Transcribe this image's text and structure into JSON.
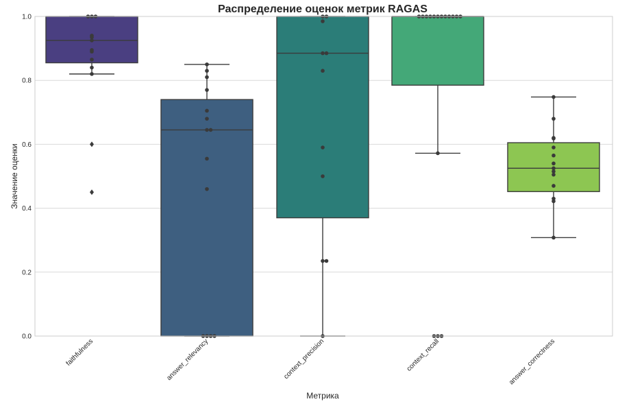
{
  "chart_data": {
    "type": "boxplot",
    "title": "Распределение оценок метрик RAGAS",
    "xlabel": "Метрика",
    "ylabel": "Значение оценки",
    "ylim": [
      0.0,
      1.0
    ],
    "yticks": [
      "0.0",
      "0.2",
      "0.4",
      "0.6",
      "0.8",
      "1.0"
    ],
    "grid": true,
    "categories": [
      "faithfulness",
      "answer_relevancy",
      "context_precision",
      "context_recall",
      "answer_correctness"
    ],
    "series": [
      {
        "name": "faithfulness",
        "color": "#4a3f81",
        "q1": 0.855,
        "median": 0.925,
        "q3": 1.0,
        "whisker_low": 0.82,
        "whisker_high": 1.0,
        "outliers": [
          0.6,
          0.45
        ],
        "points": [
          1.0,
          1.0,
          1.0,
          0.94,
          0.935,
          0.925,
          0.895,
          0.89,
          0.865,
          0.84,
          0.82
        ]
      },
      {
        "name": "answer_relevancy",
        "color": "#3e5f80",
        "q1": 0.0,
        "median": 0.645,
        "q3": 0.74,
        "whisker_low": 0.0,
        "whisker_high": 0.85,
        "outliers": [],
        "points": [
          0.85,
          0.83,
          0.81,
          0.77,
          0.705,
          0.68,
          0.645,
          0.645,
          0.555,
          0.46,
          0.0,
          0.0,
          0.0,
          0.0
        ]
      },
      {
        "name": "context_precision",
        "color": "#2b7d78",
        "q1": 0.37,
        "median": 0.885,
        "q3": 1.0,
        "whisker_low": 0.0,
        "whisker_high": 1.0,
        "outliers": [],
        "points": [
          1.0,
          1.0,
          0.985,
          0.885,
          0.885,
          0.83,
          0.59,
          0.5,
          0.235,
          0.235,
          0.0
        ]
      },
      {
        "name": "context_recall",
        "color": "#44a878",
        "q1": 0.785,
        "median": 1.0,
        "q3": 1.0,
        "whisker_low": 0.572,
        "whisker_high": 1.0,
        "outliers": [],
        "points": [
          1.0,
          1.0,
          1.0,
          1.0,
          1.0,
          1.0,
          1.0,
          1.0,
          1.0,
          1.0,
          1.0,
          1.0,
          0.572,
          0.0,
          0.0,
          0.0
        ]
      },
      {
        "name": "answer_correctness",
        "color": "#8dc652",
        "q1": 0.452,
        "median": 0.525,
        "q3": 0.605,
        "whisker_low": 0.308,
        "whisker_high": 0.748,
        "outliers": [],
        "points": [
          0.748,
          0.68,
          0.62,
          0.618,
          0.59,
          0.565,
          0.54,
          0.525,
          0.515,
          0.505,
          0.47,
          0.43,
          0.422,
          0.308
        ]
      }
    ]
  }
}
